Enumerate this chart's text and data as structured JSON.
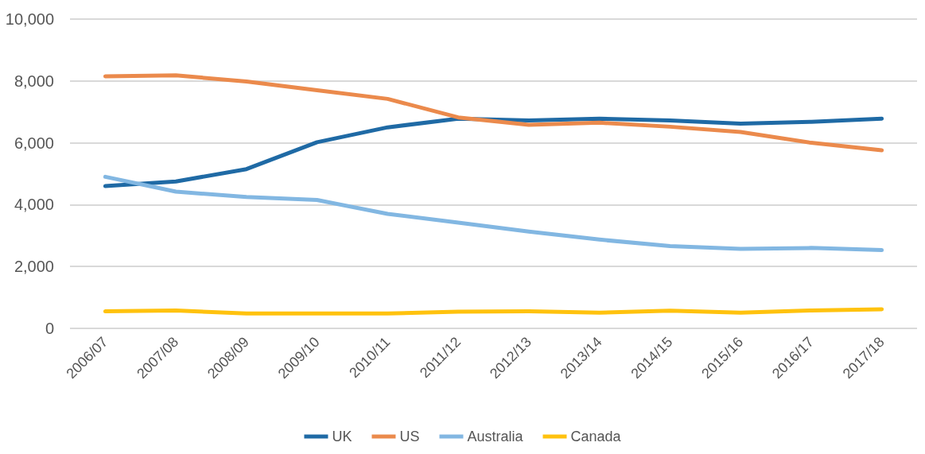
{
  "chart_data": {
    "type": "line",
    "categories": [
      "2006/07",
      "2007/08",
      "2008/09",
      "2009/10",
      "2010/11",
      "2011/12",
      "2012/13",
      "2013/14",
      "2014/15",
      "2015/16",
      "2016/17",
      "2017/18"
    ],
    "series": [
      {
        "name": "UK",
        "color": "#1f6aa5",
        "values": [
          4600,
          4750,
          5150,
          6020,
          6500,
          6780,
          6720,
          6780,
          6720,
          6620,
          6680,
          6780
        ]
      },
      {
        "name": "US",
        "color": "#eb8a4c",
        "values": [
          8150,
          8180,
          7980,
          7700,
          7420,
          6820,
          6580,
          6650,
          6520,
          6350,
          6000,
          5760
        ]
      },
      {
        "name": "Australia",
        "color": "#82b7e2",
        "values": [
          4900,
          4420,
          4250,
          4150,
          3700,
          3420,
          3130,
          2870,
          2660,
          2570,
          2600,
          2530
        ]
      },
      {
        "name": "Canada",
        "color": "#ffc20e",
        "values": [
          550,
          580,
          480,
          480,
          480,
          540,
          550,
          510,
          570,
          510,
          580,
          620
        ]
      }
    ],
    "ylim": [
      0,
      10000
    ],
    "yticks": [
      0,
      {
        "value": 2000,
        "label": "2,000"
      },
      {
        "value": 4000,
        "label": "4,000"
      },
      {
        "value": 6000,
        "label": "6,000"
      },
      {
        "value": 8000,
        "label": "8,000"
      },
      {
        "value": 10000,
        "label": "10,000"
      }
    ],
    "grid": "y",
    "legend": "bottom",
    "marker": "none",
    "line_style": "solid"
  }
}
